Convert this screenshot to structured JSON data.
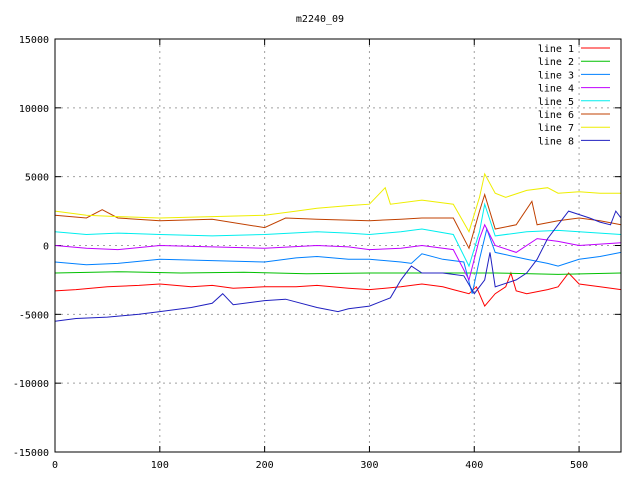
{
  "chart_data": {
    "type": "line",
    "title": "m2240_09",
    "xlabel": "",
    "ylabel": "",
    "xlim": [
      0,
      540
    ],
    "ylim": [
      -15000,
      15000
    ],
    "xticks": [
      0,
      100,
      200,
      300,
      400,
      500
    ],
    "yticks": [
      -15000,
      -10000,
      -5000,
      0,
      5000,
      10000,
      15000
    ],
    "grid": true,
    "legend_position": "top-right",
    "series": [
      {
        "name": "line 1",
        "color": "#ff0000",
        "points": [
          [
            0,
            -3300
          ],
          [
            20,
            -3200
          ],
          [
            50,
            -3000
          ],
          [
            80,
            -2900
          ],
          [
            100,
            -2800
          ],
          [
            130,
            -3000
          ],
          [
            150,
            -2900
          ],
          [
            170,
            -3100
          ],
          [
            200,
            -3000
          ],
          [
            230,
            -3000
          ],
          [
            250,
            -2900
          ],
          [
            280,
            -3100
          ],
          [
            300,
            -3200
          ],
          [
            330,
            -3000
          ],
          [
            350,
            -2800
          ],
          [
            370,
            -3000
          ],
          [
            380,
            -3200
          ],
          [
            395,
            -3500
          ],
          [
            402,
            -3000
          ],
          [
            410,
            -4400
          ],
          [
            420,
            -3500
          ],
          [
            430,
            -3000
          ],
          [
            435,
            -2000
          ],
          [
            440,
            -3300
          ],
          [
            450,
            -3500
          ],
          [
            470,
            -3200
          ],
          [
            480,
            -3000
          ],
          [
            490,
            -2000
          ],
          [
            500,
            -2800
          ],
          [
            520,
            -3000
          ],
          [
            540,
            -3200
          ]
        ]
      },
      {
        "name": "line 2",
        "color": "#00c000",
        "points": [
          [
            0,
            -2000
          ],
          [
            60,
            -1900
          ],
          [
            120,
            -2000
          ],
          [
            180,
            -1950
          ],
          [
            240,
            -2050
          ],
          [
            300,
            -2000
          ],
          [
            360,
            -2000
          ],
          [
            420,
            -2000
          ],
          [
            480,
            -2100
          ],
          [
            540,
            -2000
          ]
        ]
      },
      {
        "name": "line 3",
        "color": "#0080ff",
        "points": [
          [
            0,
            -1200
          ],
          [
            30,
            -1400
          ],
          [
            60,
            -1300
          ],
          [
            100,
            -1000
          ],
          [
            150,
            -1100
          ],
          [
            200,
            -1200
          ],
          [
            230,
            -900
          ],
          [
            250,
            -800
          ],
          [
            280,
            -1000
          ],
          [
            300,
            -1000
          ],
          [
            330,
            -1200
          ],
          [
            340,
            -1300
          ],
          [
            350,
            -600
          ],
          [
            370,
            -1000
          ],
          [
            390,
            -1200
          ],
          [
            398,
            -3500
          ],
          [
            405,
            -1000
          ],
          [
            412,
            1200
          ],
          [
            420,
            -500
          ],
          [
            450,
            -1000
          ],
          [
            470,
            -1300
          ],
          [
            480,
            -1500
          ],
          [
            500,
            -1000
          ],
          [
            520,
            -800
          ],
          [
            540,
            -500
          ]
        ]
      },
      {
        "name": "line 4",
        "color": "#c000ff",
        "points": [
          [
            0,
            0
          ],
          [
            30,
            -200
          ],
          [
            60,
            -300
          ],
          [
            100,
            0
          ],
          [
            150,
            -100
          ],
          [
            200,
            -200
          ],
          [
            250,
            0
          ],
          [
            280,
            -100
          ],
          [
            300,
            -300
          ],
          [
            330,
            -200
          ],
          [
            350,
            0
          ],
          [
            380,
            -300
          ],
          [
            395,
            -2500
          ],
          [
            405,
            500
          ],
          [
            410,
            1500
          ],
          [
            420,
            0
          ],
          [
            440,
            -500
          ],
          [
            460,
            500
          ],
          [
            480,
            300
          ],
          [
            500,
            0
          ],
          [
            520,
            100
          ],
          [
            540,
            200
          ]
        ]
      },
      {
        "name": "line 5",
        "color": "#00eeee",
        "points": [
          [
            0,
            1000
          ],
          [
            30,
            800
          ],
          [
            60,
            900
          ],
          [
            100,
            800
          ],
          [
            150,
            700
          ],
          [
            200,
            800
          ],
          [
            250,
            1000
          ],
          [
            280,
            900
          ],
          [
            300,
            800
          ],
          [
            330,
            1000
          ],
          [
            350,
            1200
          ],
          [
            380,
            800
          ],
          [
            395,
            -1500
          ],
          [
            405,
            1000
          ],
          [
            410,
            3000
          ],
          [
            420,
            700
          ],
          [
            450,
            1000
          ],
          [
            480,
            1100
          ],
          [
            500,
            1000
          ],
          [
            520,
            900
          ],
          [
            540,
            800
          ]
        ]
      },
      {
        "name": "line 6",
        "color": "#c04000",
        "points": [
          [
            0,
            2200
          ],
          [
            30,
            2000
          ],
          [
            45,
            2600
          ],
          [
            60,
            2000
          ],
          [
            100,
            1800
          ],
          [
            150,
            1900
          ],
          [
            200,
            1300
          ],
          [
            220,
            2000
          ],
          [
            250,
            1900
          ],
          [
            300,
            1800
          ],
          [
            330,
            1900
          ],
          [
            350,
            2000
          ],
          [
            380,
            2000
          ],
          [
            395,
            -200
          ],
          [
            405,
            2500
          ],
          [
            410,
            3700
          ],
          [
            420,
            1200
          ],
          [
            440,
            1500
          ],
          [
            455,
            3200
          ],
          [
            460,
            1500
          ],
          [
            480,
            1800
          ],
          [
            500,
            2000
          ],
          [
            520,
            1800
          ],
          [
            540,
            1500
          ]
        ]
      },
      {
        "name": "line 7",
        "color": "#eeee00",
        "points": [
          [
            0,
            2500
          ],
          [
            30,
            2200
          ],
          [
            60,
            2100
          ],
          [
            100,
            2000
          ],
          [
            150,
            2100
          ],
          [
            200,
            2200
          ],
          [
            230,
            2500
          ],
          [
            250,
            2700
          ],
          [
            280,
            2900
          ],
          [
            300,
            3000
          ],
          [
            315,
            4200
          ],
          [
            320,
            3000
          ],
          [
            350,
            3300
          ],
          [
            380,
            3000
          ],
          [
            395,
            1000
          ],
          [
            405,
            3500
          ],
          [
            410,
            5200
          ],
          [
            420,
            3800
          ],
          [
            430,
            3500
          ],
          [
            450,
            4000
          ],
          [
            470,
            4200
          ],
          [
            480,
            3800
          ],
          [
            500,
            3900
          ],
          [
            520,
            3800
          ],
          [
            540,
            3800
          ]
        ]
      },
      {
        "name": "line 8",
        "color": "#2020c0",
        "points": [
          [
            0,
            -5500
          ],
          [
            20,
            -5300
          ],
          [
            50,
            -5200
          ],
          [
            80,
            -5000
          ],
          [
            100,
            -4800
          ],
          [
            130,
            -4500
          ],
          [
            150,
            -4200
          ],
          [
            160,
            -3500
          ],
          [
            170,
            -4300
          ],
          [
            200,
            -4000
          ],
          [
            220,
            -3900
          ],
          [
            250,
            -4500
          ],
          [
            270,
            -4800
          ],
          [
            280,
            -4600
          ],
          [
            300,
            -4400
          ],
          [
            320,
            -3800
          ],
          [
            330,
            -2500
          ],
          [
            340,
            -1500
          ],
          [
            350,
            -2000
          ],
          [
            370,
            -2000
          ],
          [
            390,
            -2200
          ],
          [
            400,
            -3500
          ],
          [
            410,
            -2500
          ],
          [
            415,
            -500
          ],
          [
            420,
            -3000
          ],
          [
            440,
            -2500
          ],
          [
            450,
            -2000
          ],
          [
            460,
            -1000
          ],
          [
            470,
            500
          ],
          [
            480,
            1500
          ],
          [
            490,
            2500
          ],
          [
            510,
            2000
          ],
          [
            520,
            1700
          ],
          [
            530,
            1500
          ],
          [
            535,
            2500
          ],
          [
            540,
            2000
          ]
        ]
      }
    ]
  }
}
